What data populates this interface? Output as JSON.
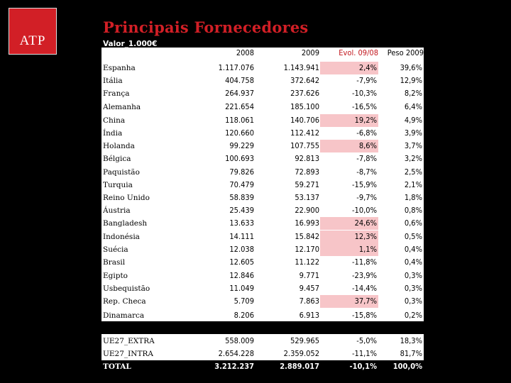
{
  "logo": {
    "text": "ATP"
  },
  "title": "Principais Fornecedores",
  "subtitle": "Valor_1.000€",
  "columns": [
    "2008",
    "2009",
    "Evol. 09/08",
    "Peso 2009"
  ],
  "rows": [
    {
      "country": "Espanha",
      "v2008": "1.117.076",
      "v2009": "1.143.941",
      "evol": "2,4%",
      "peso": "39,6%",
      "highlight": true
    },
    {
      "country": "Itália",
      "v2008": "404.758",
      "v2009": "372.642",
      "evol": "-7,9%",
      "peso": "12,9%",
      "highlight": false
    },
    {
      "country": "França",
      "v2008": "264.937",
      "v2009": "237.626",
      "evol": "-10,3%",
      "peso": "8,2%",
      "highlight": false
    },
    {
      "country": "Alemanha",
      "v2008": "221.654",
      "v2009": "185.100",
      "evol": "-16,5%",
      "peso": "6,4%",
      "highlight": false
    },
    {
      "country": "China",
      "v2008": "118.061",
      "v2009": "140.706",
      "evol": "19,2%",
      "peso": "4,9%",
      "highlight": true
    },
    {
      "country": "Índia",
      "v2008": "120.660",
      "v2009": "112.412",
      "evol": "-6,8%",
      "peso": "3,9%",
      "highlight": false
    },
    {
      "country": "Holanda",
      "v2008": "99.229",
      "v2009": "107.755",
      "evol": "8,6%",
      "peso": "3,7%",
      "highlight": true
    },
    {
      "country": "Bélgica",
      "v2008": "100.693",
      "v2009": "92.813",
      "evol": "-7,8%",
      "peso": "3,2%",
      "highlight": false
    },
    {
      "country": "Paquistão",
      "v2008": "79.826",
      "v2009": "72.893",
      "evol": "-8,7%",
      "peso": "2,5%",
      "highlight": false
    },
    {
      "country": "Turquia",
      "v2008": "70.479",
      "v2009": "59.271",
      "evol": "-15,9%",
      "peso": "2,1%",
      "highlight": false
    },
    {
      "country": "Reino Unido",
      "v2008": "58.839",
      "v2009": "53.137",
      "evol": "-9,7%",
      "peso": "1,8%",
      "highlight": false
    },
    {
      "country": "Áustria",
      "v2008": "25.439",
      "v2009": "22.900",
      "evol": "-10,0%",
      "peso": "0,8%",
      "highlight": false
    },
    {
      "country": "Bangladesh",
      "v2008": "13.633",
      "v2009": "16.993",
      "evol": "24,6%",
      "peso": "0,6%",
      "highlight": true
    },
    {
      "country": "Indonésia",
      "v2008": "14.111",
      "v2009": "15.842",
      "evol": "12,3%",
      "peso": "0,5%",
      "highlight": true
    },
    {
      "country": "Suécia",
      "v2008": "12.038",
      "v2009": "12.170",
      "evol": "1,1%",
      "peso": "0,4%",
      "highlight": true
    },
    {
      "country": "Brasil",
      "v2008": "12.605",
      "v2009": "11.122",
      "evol": "-11,8%",
      "peso": "0,4%",
      "highlight": false
    },
    {
      "country": "Egipto",
      "v2008": "12.846",
      "v2009": "9.771",
      "evol": "-23,9%",
      "peso": "0,3%",
      "highlight": false
    },
    {
      "country": "Usbequistão",
      "v2008": "11.049",
      "v2009": "9.457",
      "evol": "-14,4%",
      "peso": "0,3%",
      "highlight": false
    },
    {
      "country": "Rep. Checa",
      "v2008": "5.709",
      "v2009": "7.863",
      "evol": "37,7%",
      "peso": "0,3%",
      "highlight": true
    },
    {
      "country": "Dinamarca",
      "v2008": "8.206",
      "v2009": "6.913",
      "evol": "-15,8%",
      "peso": "0,2%",
      "highlight": false
    }
  ],
  "totals": [
    {
      "country": "UE27_EXTRA",
      "v2008": "558.009",
      "v2009": "529.965",
      "evol": "-5,0%",
      "peso": "18,3%",
      "bold": false
    },
    {
      "country": "UE27_INTRA",
      "v2008": "2.654.228",
      "v2009": "2.359.052",
      "evol": "-11,1%",
      "peso": "81,7%",
      "bold": false
    },
    {
      "country": "TOTAL",
      "v2008": "3.212.237",
      "v2009": "2.889.017",
      "evol": "-10,1%",
      "peso": "100,0%",
      "bold": true
    }
  ]
}
